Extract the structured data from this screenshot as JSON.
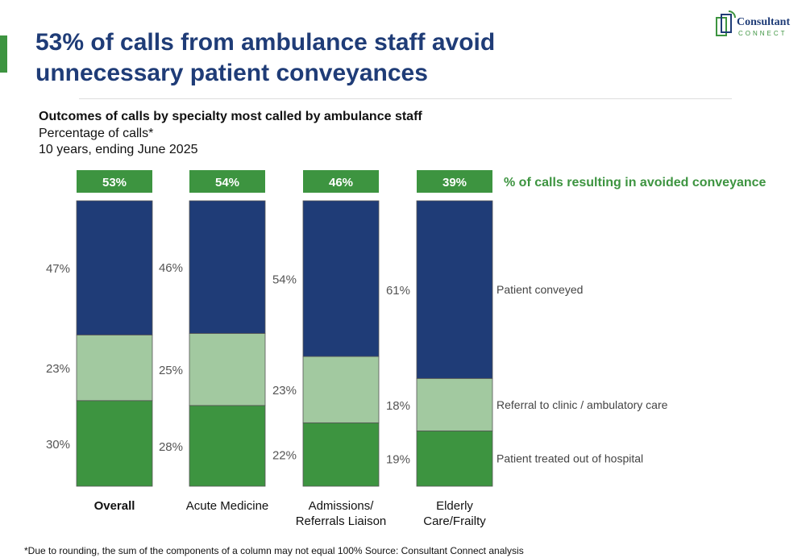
{
  "header": {
    "title_line1": "53% of calls from ambulance staff avoid",
    "title_line2": "unnecessary patient conveyances",
    "logo_text": "Consultant",
    "logo_subtext": "CONNECT"
  },
  "subtitle": {
    "line1": "Outcomes of calls by specialty most called by ambulance staff",
    "line2": "Percentage of calls*",
    "line3": "10 years, ending June 2025"
  },
  "footnote": "*Due to rounding, the sum of the components of a column may not equal 100% Source: Consultant Connect analysis",
  "colors": {
    "dark_blue": "#1f3c77",
    "light_green": "#a2c9a0",
    "green": "#3d9440"
  },
  "chart_data": {
    "type": "bar",
    "stacked": true,
    "ylim": [
      0,
      100
    ],
    "categories": [
      "Overall",
      "Acute Medicine",
      "Admissions/\nReferrals Liaison",
      "Elderly\nCare/Frailty"
    ],
    "series": [
      {
        "name": "Patient treated out of hospital",
        "values": [
          30,
          28,
          22,
          19
        ],
        "labels": [
          "30%",
          "28%",
          "22%",
          "19%"
        ]
      },
      {
        "name": "Referral to clinic / ambulatory care",
        "values": [
          23,
          25,
          23,
          18
        ],
        "labels": [
          "23%",
          "25%",
          "23%",
          "18%"
        ]
      },
      {
        "name": "Patient conveyed",
        "values": [
          47,
          46,
          54,
          61
        ],
        "labels": [
          "47%",
          "46%",
          "54%",
          "61%"
        ]
      }
    ],
    "totals": {
      "name": "% of calls resulting in avoided conveyance",
      "labels": [
        "53%",
        "54%",
        "46%",
        "39%"
      ]
    }
  }
}
